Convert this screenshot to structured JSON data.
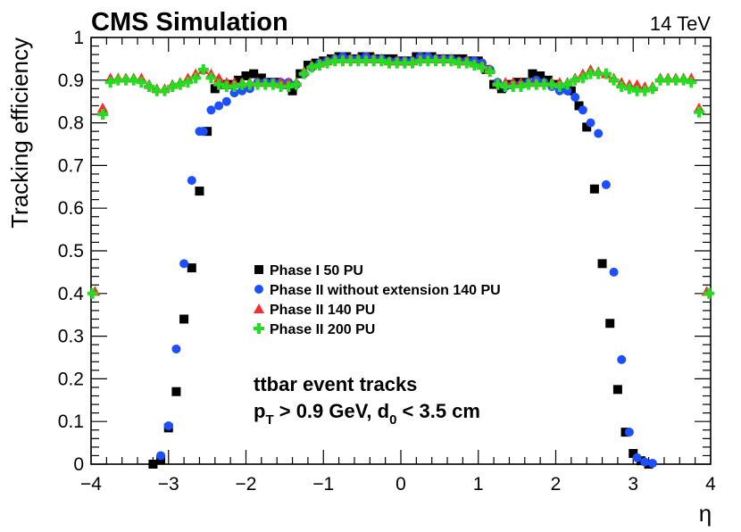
{
  "chart_data": {
    "type": "scatter",
    "title": "CMS Simulation",
    "energy_label": "14 TeV",
    "xlabel": "η",
    "ylabel": "Tracking efficiency",
    "xlim": [
      -4,
      4
    ],
    "ylim": [
      0,
      1
    ],
    "x_ticks": [
      -4,
      -3,
      -2,
      -1,
      0,
      1,
      2,
      3,
      4
    ],
    "x_tick_labels": [
      "−4",
      "−3",
      "−2",
      "−1",
      "0",
      "1",
      "2",
      "3",
      "4"
    ],
    "y_ticks": [
      0,
      0.1,
      0.2,
      0.3,
      0.4,
      0.5,
      0.6,
      0.7,
      0.8,
      0.9,
      1
    ],
    "y_tick_labels": [
      "0",
      "0.1",
      "0.2",
      "0.3",
      "0.4",
      "0.5",
      "0.6",
      "0.7",
      "0.8",
      "0.9",
      "1"
    ],
    "annotation_line1": "ttbar event tracks",
    "annotation_pt": "p",
    "annotation_pt_sub": "T",
    "annotation_mid": " > 0.9 GeV, d",
    "annotation_d_sub": "0",
    "annotation_end": " < 3.5 cm",
    "series": [
      {
        "name": "Phase I 50 PU",
        "color": "#000000",
        "marker": "square",
        "x": [
          -3.2,
          -3.1,
          -3.0,
          -2.9,
          -2.8,
          -2.7,
          -2.6,
          -2.5,
          -2.4,
          -2.3,
          -2.2,
          -2.1,
          -2.0,
          -1.9,
          -1.8,
          -1.7,
          -1.6,
          -1.5,
          -1.4,
          -1.3,
          -1.2,
          -1.1,
          -1.0,
          -0.9,
          -0.8,
          -0.7,
          -0.6,
          -0.5,
          -0.4,
          -0.3,
          -0.2,
          -0.1,
          0.0,
          0.1,
          0.2,
          0.3,
          0.4,
          0.5,
          0.6,
          0.7,
          0.8,
          0.9,
          1.0,
          1.1,
          1.2,
          1.3,
          1.4,
          1.5,
          1.6,
          1.7,
          1.8,
          1.9,
          2.0,
          2.1,
          2.2,
          2.3,
          2.4,
          2.5,
          2.6,
          2.7,
          2.8,
          2.9,
          3.0,
          3.1,
          3.2
        ],
        "values": [
          0.0,
          0.01,
          0.085,
          0.17,
          0.34,
          0.46,
          0.64,
          0.78,
          0.88,
          0.89,
          0.89,
          0.9,
          0.91,
          0.915,
          0.905,
          0.895,
          0.895,
          0.89,
          0.875,
          0.915,
          0.935,
          0.94,
          0.945,
          0.95,
          0.955,
          0.955,
          0.95,
          0.955,
          0.955,
          0.95,
          0.95,
          0.95,
          0.945,
          0.945,
          0.955,
          0.955,
          0.955,
          0.95,
          0.95,
          0.95,
          0.95,
          0.945,
          0.945,
          0.925,
          0.89,
          0.88,
          0.89,
          0.895,
          0.895,
          0.915,
          0.91,
          0.9,
          0.89,
          0.88,
          0.875,
          0.84,
          0.79,
          0.645,
          0.47,
          0.33,
          0.175,
          0.075,
          0.025,
          0.008,
          0.0
        ]
      },
      {
        "name": "Phase II without extension 140 PU",
        "color": "#1e4fff",
        "marker": "circle",
        "x": [
          -3.1,
          -3.0,
          -2.9,
          -2.8,
          -2.7,
          -2.6,
          -2.55,
          -2.45,
          -2.35,
          -2.25,
          -2.15,
          -2.05,
          -1.95,
          -1.85,
          -1.75,
          -1.65,
          -1.55,
          -1.45,
          -1.35,
          -1.25,
          -1.15,
          -1.05,
          -0.95,
          -0.85,
          -0.75,
          -0.65,
          -0.55,
          -0.45,
          -0.35,
          -0.25,
          -0.15,
          -0.05,
          0.05,
          0.15,
          0.25,
          0.35,
          0.45,
          0.55,
          0.65,
          0.75,
          0.85,
          0.95,
          1.05,
          1.15,
          1.25,
          1.35,
          1.45,
          1.55,
          1.65,
          1.75,
          1.85,
          1.95,
          2.05,
          2.15,
          2.25,
          2.35,
          2.45,
          2.55,
          2.65,
          2.75,
          2.85,
          2.95,
          3.05,
          3.15,
          3.25
        ],
        "values": [
          0.02,
          0.09,
          0.27,
          0.47,
          0.665,
          0.78,
          0.78,
          0.83,
          0.84,
          0.85,
          0.87,
          0.875,
          0.88,
          0.895,
          0.895,
          0.895,
          0.895,
          0.895,
          0.89,
          0.915,
          0.93,
          0.94,
          0.945,
          0.95,
          0.955,
          0.95,
          0.95,
          0.955,
          0.95,
          0.95,
          0.945,
          0.945,
          0.945,
          0.945,
          0.955,
          0.955,
          0.95,
          0.95,
          0.95,
          0.945,
          0.945,
          0.945,
          0.94,
          0.925,
          0.895,
          0.885,
          0.89,
          0.89,
          0.895,
          0.9,
          0.895,
          0.885,
          0.875,
          0.875,
          0.86,
          0.83,
          0.8,
          0.775,
          0.655,
          0.45,
          0.245,
          0.075,
          0.015,
          0.005,
          0.002
        ]
      },
      {
        "name": "Phase II 140 PU",
        "color": "#ff2a2a",
        "marker": "triangle",
        "x": [
          -3.95,
          -3.85,
          -3.75,
          -3.65,
          -3.55,
          -3.45,
          -3.35,
          -3.25,
          -3.15,
          -3.05,
          -2.95,
          -2.85,
          -2.75,
          -2.65,
          -2.55,
          -2.45,
          -2.35,
          -2.25,
          -2.15,
          -2.05,
          -1.95,
          -1.85,
          -1.75,
          -1.65,
          -1.55,
          -1.45,
          -1.35,
          -1.25,
          -1.15,
          -1.05,
          -0.95,
          -0.85,
          -0.75,
          -0.65,
          -0.55,
          -0.45,
          -0.35,
          -0.25,
          -0.15,
          -0.05,
          0.05,
          0.15,
          0.25,
          0.35,
          0.45,
          0.55,
          0.65,
          0.75,
          0.85,
          0.95,
          1.05,
          1.15,
          1.25,
          1.35,
          1.45,
          1.55,
          1.65,
          1.75,
          1.85,
          1.95,
          2.05,
          2.15,
          2.25,
          2.35,
          2.45,
          2.55,
          2.65,
          2.75,
          2.85,
          2.95,
          3.05,
          3.15,
          3.25,
          3.35,
          3.45,
          3.55,
          3.65,
          3.75,
          3.85,
          3.95
        ],
        "values": [
          0.405,
          0.835,
          0.905,
          0.905,
          0.905,
          0.905,
          0.905,
          0.89,
          0.88,
          0.88,
          0.89,
          0.895,
          0.905,
          0.915,
          0.925,
          0.915,
          0.905,
          0.895,
          0.895,
          0.895,
          0.895,
          0.895,
          0.895,
          0.895,
          0.895,
          0.895,
          0.895,
          0.92,
          0.935,
          0.94,
          0.945,
          0.95,
          0.95,
          0.95,
          0.95,
          0.95,
          0.95,
          0.95,
          0.945,
          0.945,
          0.945,
          0.945,
          0.95,
          0.95,
          0.95,
          0.95,
          0.95,
          0.945,
          0.945,
          0.94,
          0.935,
          0.925,
          0.895,
          0.895,
          0.895,
          0.895,
          0.895,
          0.895,
          0.895,
          0.895,
          0.895,
          0.895,
          0.905,
          0.915,
          0.925,
          0.92,
          0.915,
          0.905,
          0.895,
          0.89,
          0.89,
          0.885,
          0.885,
          0.905,
          0.905,
          0.905,
          0.905,
          0.905,
          0.835,
          0.405
        ]
      },
      {
        "name": "Phase II 200 PU",
        "color": "#22dd22",
        "marker": "cross",
        "x": [
          -3.98,
          -3.85,
          -3.75,
          -3.65,
          -3.55,
          -3.45,
          -3.35,
          -3.25,
          -3.15,
          -3.05,
          -2.95,
          -2.85,
          -2.75,
          -2.65,
          -2.55,
          -2.45,
          -2.35,
          -2.25,
          -2.15,
          -2.05,
          -1.95,
          -1.85,
          -1.75,
          -1.65,
          -1.55,
          -1.45,
          -1.35,
          -1.25,
          -1.15,
          -1.05,
          -0.95,
          -0.85,
          -0.75,
          -0.65,
          -0.55,
          -0.45,
          -0.35,
          -0.25,
          -0.15,
          -0.05,
          0.05,
          0.15,
          0.25,
          0.35,
          0.45,
          0.55,
          0.65,
          0.75,
          0.85,
          0.95,
          1.05,
          1.15,
          1.25,
          1.35,
          1.45,
          1.55,
          1.65,
          1.75,
          1.85,
          1.95,
          2.05,
          2.15,
          2.25,
          2.35,
          2.45,
          2.55,
          2.65,
          2.75,
          2.85,
          2.95,
          3.05,
          3.15,
          3.25,
          3.35,
          3.45,
          3.55,
          3.65,
          3.75,
          3.85,
          3.98
        ],
        "values": [
          0.4,
          0.82,
          0.895,
          0.9,
          0.9,
          0.9,
          0.895,
          0.885,
          0.875,
          0.875,
          0.885,
          0.89,
          0.895,
          0.905,
          0.925,
          0.905,
          0.89,
          0.885,
          0.885,
          0.89,
          0.89,
          0.89,
          0.89,
          0.89,
          0.885,
          0.885,
          0.89,
          0.915,
          0.93,
          0.935,
          0.94,
          0.945,
          0.945,
          0.945,
          0.945,
          0.945,
          0.945,
          0.945,
          0.94,
          0.94,
          0.94,
          0.94,
          0.945,
          0.945,
          0.945,
          0.945,
          0.945,
          0.94,
          0.94,
          0.935,
          0.93,
          0.92,
          0.89,
          0.885,
          0.885,
          0.885,
          0.89,
          0.89,
          0.89,
          0.89,
          0.885,
          0.89,
          0.9,
          0.905,
          0.915,
          0.915,
          0.915,
          0.9,
          0.885,
          0.88,
          0.875,
          0.875,
          0.88,
          0.9,
          0.9,
          0.9,
          0.9,
          0.895,
          0.825,
          0.4
        ]
      }
    ]
  }
}
